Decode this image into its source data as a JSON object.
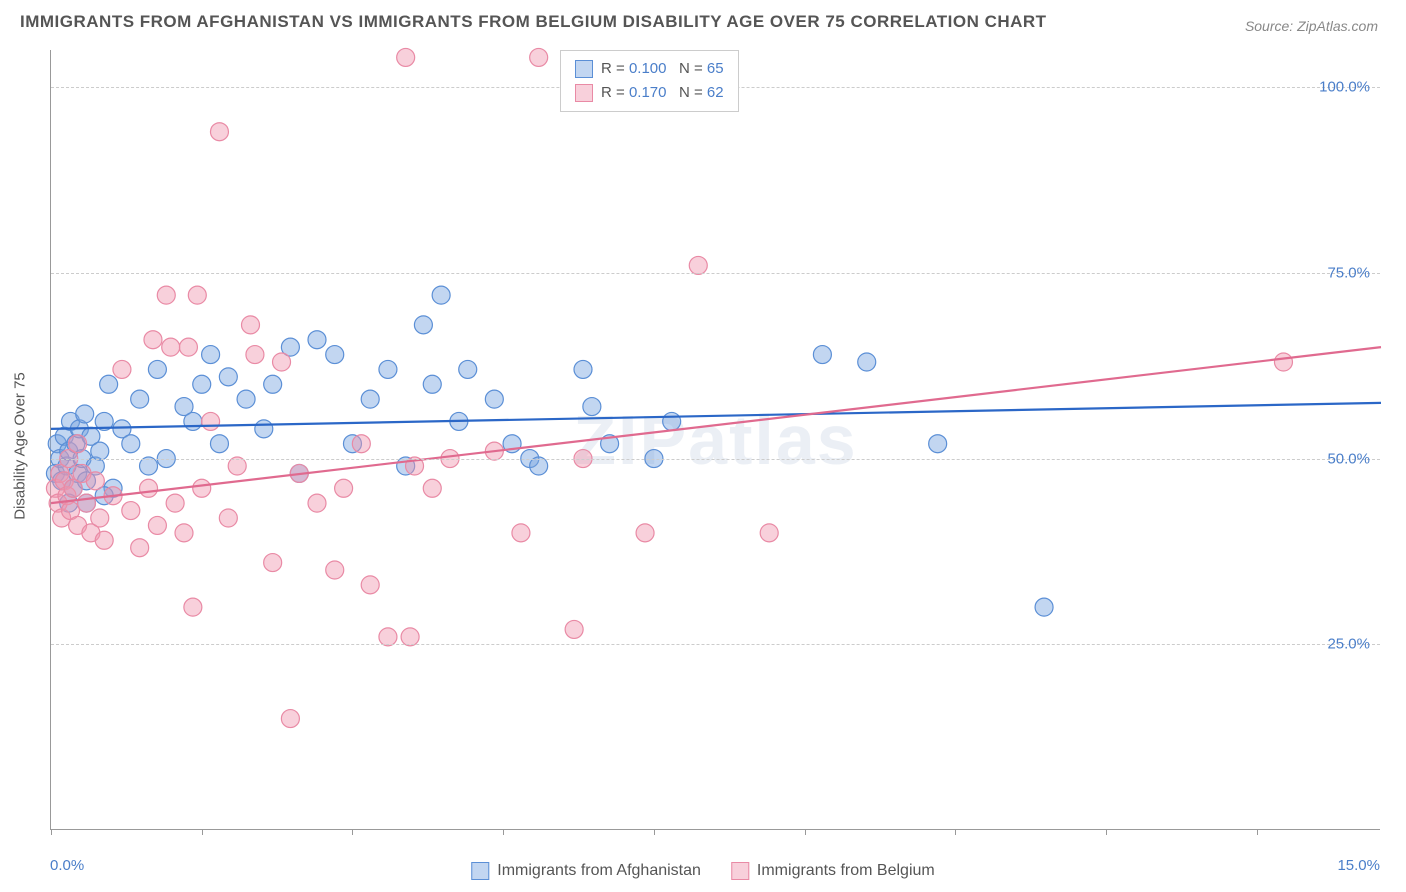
{
  "title": "IMMIGRANTS FROM AFGHANISTAN VS IMMIGRANTS FROM BELGIUM DISABILITY AGE OVER 75 CORRELATION CHART",
  "source": "Source: ZipAtlas.com",
  "watermark": "ZIPatlas",
  "ylabel": "Disability Age Over 75",
  "chart": {
    "type": "scatter",
    "xlim": [
      0,
      15
    ],
    "ylim": [
      0,
      105
    ],
    "y_ticks": [
      25,
      50,
      75,
      100
    ],
    "y_tick_labels": [
      "25.0%",
      "50.0%",
      "75.0%",
      "100.0%"
    ],
    "x_ticks": [
      0,
      1.7,
      3.4,
      5.1,
      6.8,
      8.5,
      10.2,
      11.9,
      13.6
    ],
    "x_left_label": "0.0%",
    "x_right_label": "15.0%",
    "background_color": "#ffffff",
    "grid_color": "#cccccc",
    "axis_color": "#999999",
    "marker_radius": 9,
    "marker_opacity": 0.55,
    "line_width": 2.2,
    "series": [
      {
        "name": "Immigrants from Afghanistan",
        "color_fill": "rgba(120,165,225,0.45)",
        "color_stroke": "#5b8fd6",
        "line_color": "#2b67c7",
        "R": "0.100",
        "N": "65",
        "trend": {
          "x1": 0,
          "y1": 54,
          "x2": 15,
          "y2": 57.5
        },
        "points": [
          [
            0.05,
            48
          ],
          [
            0.07,
            52
          ],
          [
            0.1,
            50
          ],
          [
            0.12,
            47
          ],
          [
            0.15,
            53
          ],
          [
            0.18,
            49
          ],
          [
            0.2,
            51
          ],
          [
            0.22,
            55
          ],
          [
            0.25,
            46
          ],
          [
            0.28,
            52
          ],
          [
            0.3,
            48
          ],
          [
            0.32,
            54
          ],
          [
            0.35,
            50
          ],
          [
            0.38,
            56
          ],
          [
            0.4,
            47
          ],
          [
            0.45,
            53
          ],
          [
            0.5,
            49
          ],
          [
            0.55,
            51
          ],
          [
            0.6,
            55
          ],
          [
            0.65,
            60
          ],
          [
            0.7,
            46
          ],
          [
            0.8,
            54
          ],
          [
            0.9,
            52
          ],
          [
            1.0,
            58
          ],
          [
            1.1,
            49
          ],
          [
            1.2,
            62
          ],
          [
            1.3,
            50
          ],
          [
            1.5,
            57
          ],
          [
            1.6,
            55
          ],
          [
            1.7,
            60
          ],
          [
            1.8,
            64
          ],
          [
            1.9,
            52
          ],
          [
            2.0,
            61
          ],
          [
            2.2,
            58
          ],
          [
            2.4,
            54
          ],
          [
            2.5,
            60
          ],
          [
            2.7,
            65
          ],
          [
            2.8,
            48
          ],
          [
            3.0,
            66
          ],
          [
            3.2,
            64
          ],
          [
            3.4,
            52
          ],
          [
            3.6,
            58
          ],
          [
            3.8,
            62
          ],
          [
            4.0,
            49
          ],
          [
            4.2,
            68
          ],
          [
            4.3,
            60
          ],
          [
            4.4,
            72
          ],
          [
            4.6,
            55
          ],
          [
            4.7,
            62
          ],
          [
            5.0,
            58
          ],
          [
            5.2,
            52
          ],
          [
            5.4,
            50
          ],
          [
            5.5,
            49
          ],
          [
            6.0,
            62
          ],
          [
            6.1,
            57
          ],
          [
            6.3,
            52
          ],
          [
            6.8,
            50
          ],
          [
            7.0,
            55
          ],
          [
            8.7,
            64
          ],
          [
            9.2,
            63
          ],
          [
            10.0,
            52
          ],
          [
            11.2,
            30
          ],
          [
            0.4,
            44
          ],
          [
            0.6,
            45
          ],
          [
            0.2,
            44
          ]
        ]
      },
      {
        "name": "Immigrants from Belgium",
        "color_fill": "rgba(240,150,175,0.45)",
        "color_stroke": "#e98aa5",
        "line_color": "#e06a8f",
        "R": "0.170",
        "N": "62",
        "trend": {
          "x1": 0,
          "y1": 44,
          "x2": 15,
          "y2": 65
        },
        "points": [
          [
            0.05,
            46
          ],
          [
            0.08,
            44
          ],
          [
            0.1,
            48
          ],
          [
            0.12,
            42
          ],
          [
            0.15,
            47
          ],
          [
            0.18,
            45
          ],
          [
            0.2,
            50
          ],
          [
            0.22,
            43
          ],
          [
            0.25,
            46
          ],
          [
            0.3,
            41
          ],
          [
            0.35,
            48
          ],
          [
            0.4,
            44
          ],
          [
            0.45,
            40
          ],
          [
            0.5,
            47
          ],
          [
            0.55,
            42
          ],
          [
            0.6,
            39
          ],
          [
            0.7,
            45
          ],
          [
            0.8,
            62
          ],
          [
            0.9,
            43
          ],
          [
            1.0,
            38
          ],
          [
            1.1,
            46
          ],
          [
            1.15,
            66
          ],
          [
            1.2,
            41
          ],
          [
            1.3,
            72
          ],
          [
            1.35,
            65
          ],
          [
            1.4,
            44
          ],
          [
            1.5,
            40
          ],
          [
            1.55,
            65
          ],
          [
            1.6,
            30
          ],
          [
            1.65,
            72
          ],
          [
            1.7,
            46
          ],
          [
            1.8,
            55
          ],
          [
            1.9,
            94
          ],
          [
            2.0,
            42
          ],
          [
            2.1,
            49
          ],
          [
            2.25,
            68
          ],
          [
            2.3,
            64
          ],
          [
            2.5,
            36
          ],
          [
            2.6,
            63
          ],
          [
            2.7,
            15
          ],
          [
            2.8,
            48
          ],
          [
            3.0,
            44
          ],
          [
            3.2,
            35
          ],
          [
            3.3,
            46
          ],
          [
            3.5,
            52
          ],
          [
            3.6,
            33
          ],
          [
            3.8,
            26
          ],
          [
            4.0,
            104
          ],
          [
            4.05,
            26
          ],
          [
            4.1,
            49
          ],
          [
            4.3,
            46
          ],
          [
            4.5,
            50
          ],
          [
            5.0,
            51
          ],
          [
            5.3,
            40
          ],
          [
            5.5,
            104
          ],
          [
            5.9,
            27
          ],
          [
            6.0,
            50
          ],
          [
            6.7,
            40
          ],
          [
            7.3,
            76
          ],
          [
            8.1,
            40
          ],
          [
            13.9,
            63
          ],
          [
            0.3,
            52
          ]
        ]
      }
    ]
  },
  "legend_top_labels": {
    "R": "R =",
    "N": "N ="
  },
  "colors": {
    "text_title": "#555555",
    "text_source": "#888888",
    "tick_label": "#4a7ec9"
  },
  "fonts": {
    "title_size": 17,
    "tick_size": 15,
    "legend_size": 15,
    "ylabel_size": 15,
    "watermark_size": 70
  }
}
